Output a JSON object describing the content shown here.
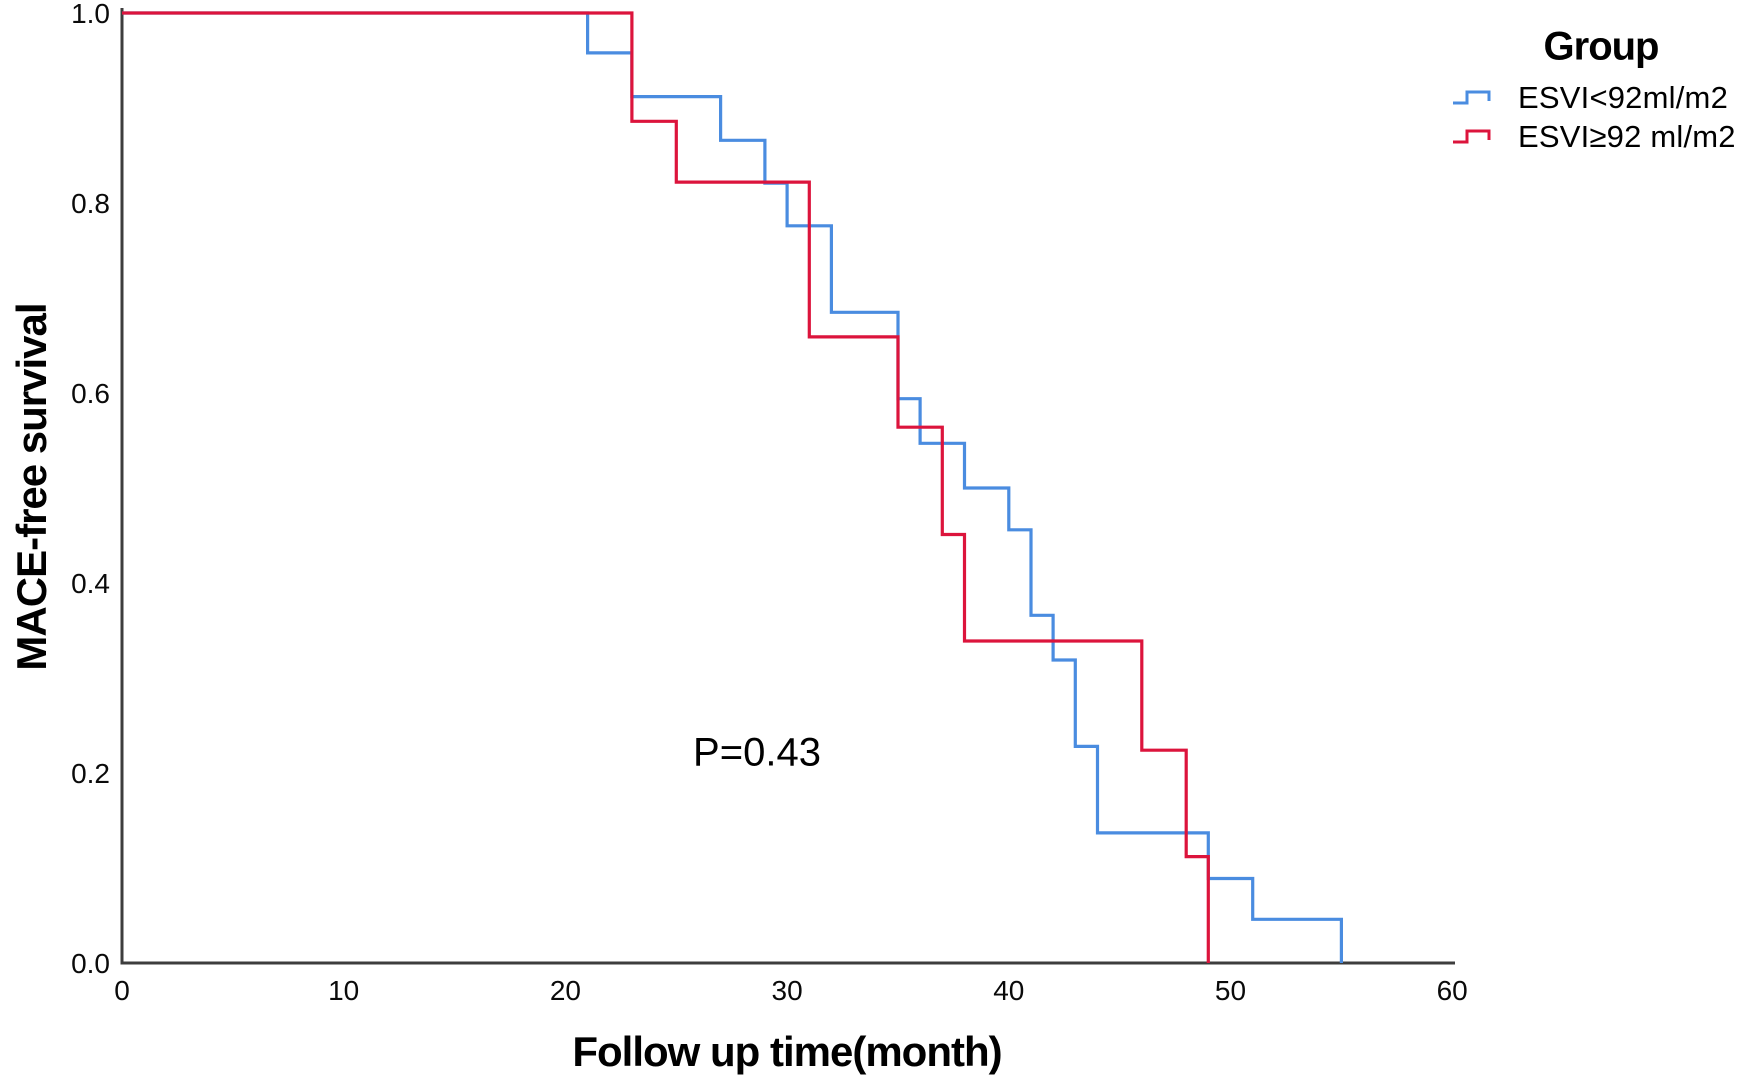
{
  "chart_data": {
    "type": "line",
    "subtype": "kaplan-meier-step",
    "title": "",
    "xlabel": "Follow up time(month)",
    "ylabel": "MACE-free survival",
    "annotation": "P=0.43",
    "xlim": [
      0,
      60
    ],
    "ylim": [
      0.0,
      1.0
    ],
    "grid": false,
    "x_ticks": [
      0,
      10,
      20,
      30,
      40,
      50,
      60
    ],
    "y_ticks": [
      {
        "value": 1.0,
        "label": "1.0"
      },
      {
        "value": 0.8,
        "label": "0.8"
      },
      {
        "value": 0.6,
        "label": "0.6"
      },
      {
        "value": 0.4,
        "label": "0.4"
      },
      {
        "value": 0.2,
        "label": "0.2"
      },
      {
        "value": 0.0,
        "label": "0.0"
      }
    ],
    "legend": {
      "title": "Group",
      "position": "top-right",
      "entries": [
        {
          "label": "ESVI<92ml/m2",
          "color": "#4a8ce0"
        },
        {
          "label": "ESVI≥92 ml/m2",
          "color": "#dc143c"
        }
      ]
    },
    "series": [
      {
        "name": "ESVI<92ml/m2",
        "color": "#4a8ce0",
        "step": "post",
        "points": [
          [
            0,
            1.0
          ],
          [
            21,
            0.958
          ],
          [
            23,
            0.912
          ],
          [
            27,
            0.866
          ],
          [
            29,
            0.821
          ],
          [
            30,
            0.776
          ],
          [
            32,
            0.685
          ],
          [
            35,
            0.594
          ],
          [
            36,
            0.547
          ],
          [
            38,
            0.5
          ],
          [
            40,
            0.456
          ],
          [
            41,
            0.366
          ],
          [
            42,
            0.319
          ],
          [
            43,
            0.228
          ],
          [
            44,
            0.137
          ],
          [
            49,
            0.089
          ],
          [
            51,
            0.046
          ],
          [
            55,
            0.0
          ]
        ]
      },
      {
        "name": "ESVI≥92 ml/m2",
        "color": "#dc143c",
        "step": "post",
        "points": [
          [
            0,
            1.0
          ],
          [
            23,
            0.886
          ],
          [
            25,
            0.822
          ],
          [
            31,
            0.659
          ],
          [
            35,
            0.564
          ],
          [
            37,
            0.451
          ],
          [
            38,
            0.339
          ],
          [
            46,
            0.224
          ],
          [
            48,
            0.112
          ],
          [
            49,
            0.0
          ]
        ]
      }
    ],
    "axis_color": "#3d3d3d"
  }
}
